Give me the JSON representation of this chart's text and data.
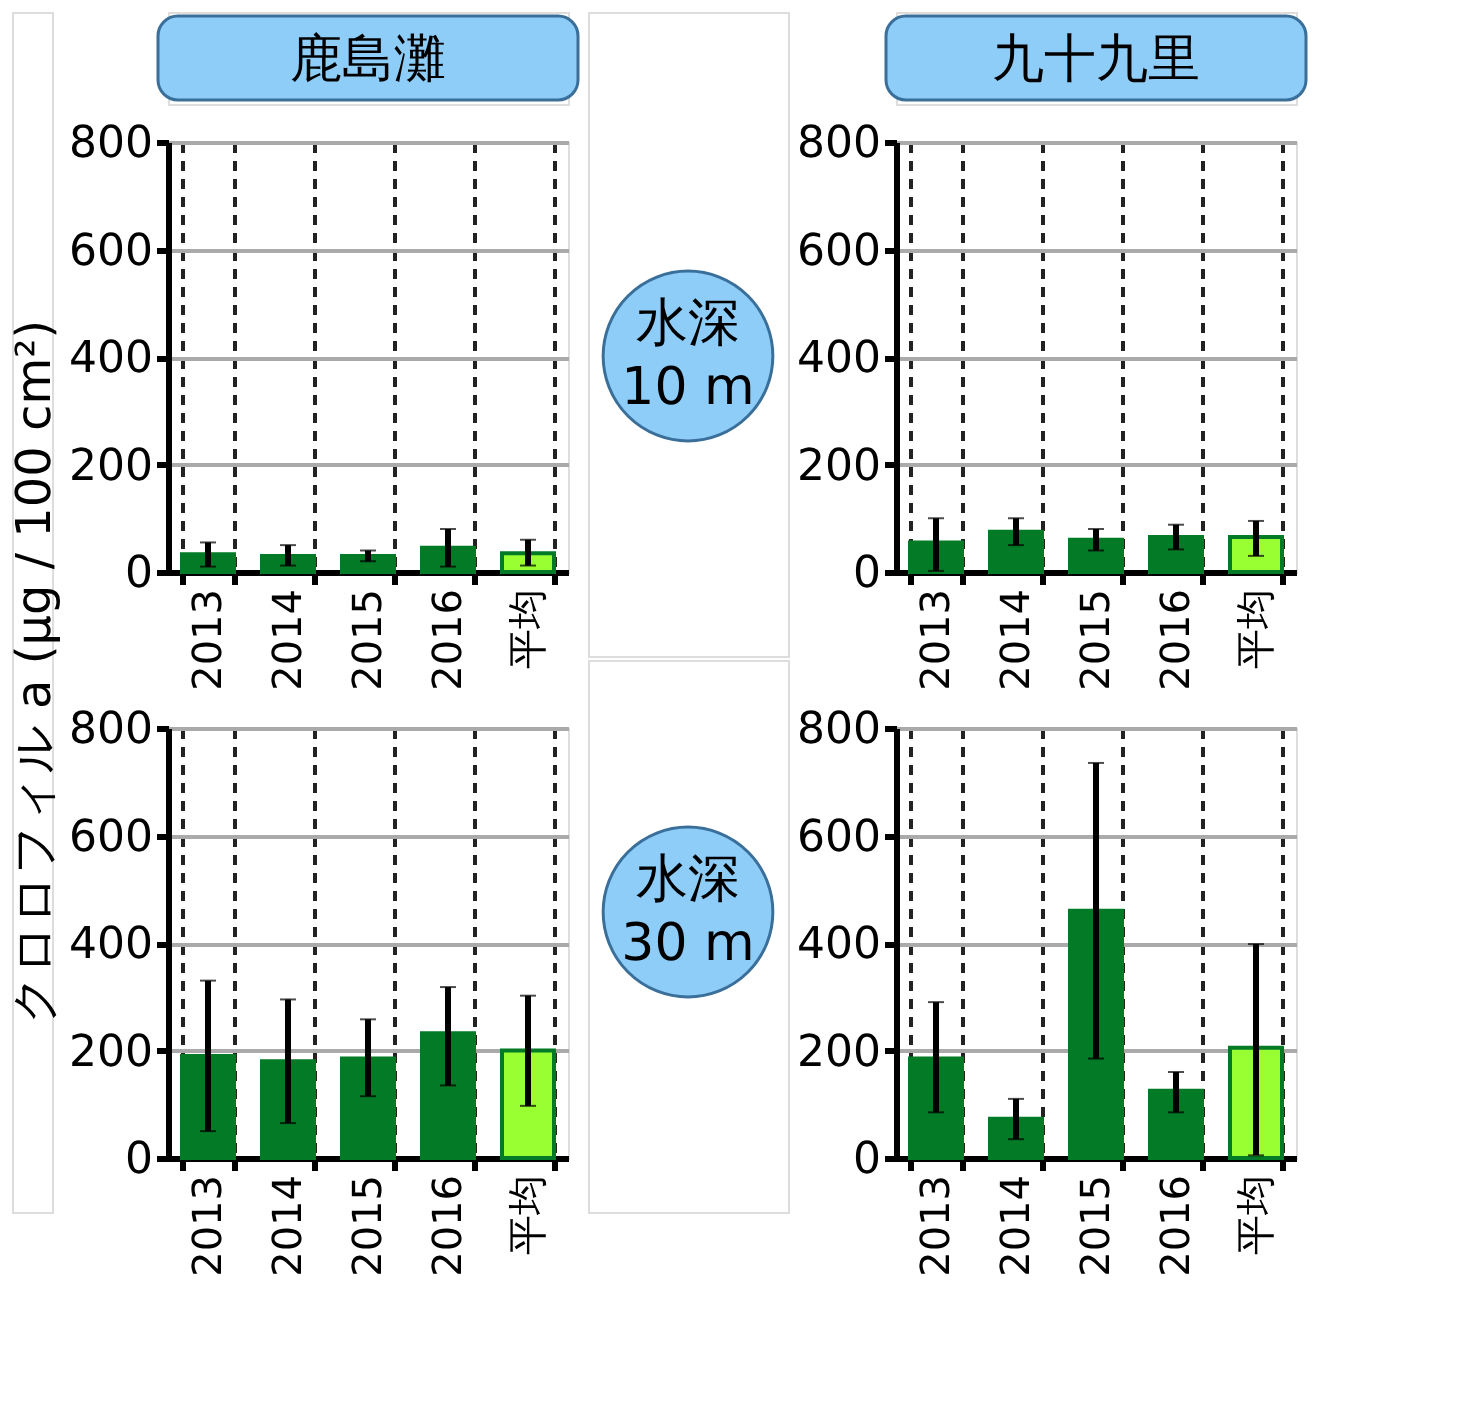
{
  "chart_data": [
    {
      "type": "bar",
      "title": "鹿島灘",
      "ylabel": "クロロフィル a (μg / 100 cm²)",
      "annotations": [
        "水深 10 m"
      ],
      "categories": [
        "2013",
        "2014",
        "2015",
        "2016",
        "平均"
      ],
      "values": [
        33,
        30,
        30,
        45,
        35
      ],
      "errors": [
        [
          10,
          55
        ],
        [
          12,
          50
        ],
        [
          20,
          40
        ],
        [
          10,
          80
        ],
        [
          12,
          60
        ]
      ],
      "colors": [
        "#037a26",
        "#037a26",
        "#037a26",
        "#037a26",
        "#99ff33"
      ],
      "ylim": [
        0,
        800
      ],
      "yticks": [
        0,
        200,
        400,
        600,
        800
      ],
      "grid": true
    },
    {
      "type": "bar",
      "title": "九十九里",
      "categories": [
        "2013",
        "2014",
        "2015",
        "2016",
        "平均"
      ],
      "values": [
        55,
        75,
        60,
        65,
        65
      ],
      "errors": [
        [
          2,
          100
        ],
        [
          50,
          100
        ],
        [
          40,
          80
        ],
        [
          42,
          88
        ],
        [
          30,
          95
        ]
      ],
      "colors": [
        "#037a26",
        "#037a26",
        "#037a26",
        "#037a26",
        "#99ff33"
      ],
      "ylim": [
        0,
        800
      ],
      "yticks": [
        0,
        200,
        400,
        600,
        800
      ],
      "grid": true
    },
    {
      "type": "bar",
      "annotations": [
        "水深 30 m"
      ],
      "categories": [
        "2013",
        "2014",
        "2015",
        "2016",
        "平均"
      ],
      "values": [
        190,
        180,
        185,
        232,
        200
      ],
      "errors": [
        [
          50,
          330
        ],
        [
          65,
          295
        ],
        [
          115,
          258
        ],
        [
          135,
          318
        ],
        [
          97,
          302
        ]
      ],
      "colors": [
        "#037a26",
        "#037a26",
        "#037a26",
        "#037a26",
        "#99ff33"
      ],
      "ylim": [
        0,
        800
      ],
      "yticks": [
        0,
        200,
        400,
        600,
        800
      ],
      "grid": true
    },
    {
      "type": "bar",
      "categories": [
        "2013",
        "2014",
        "2015",
        "2016",
        "平均"
      ],
      "values": [
        185,
        73,
        460,
        125,
        205
      ],
      "errors": [
        [
          85,
          290
        ],
        [
          35,
          110
        ],
        [
          185,
          735
        ],
        [
          85,
          160
        ],
        [
          5,
          398
        ]
      ],
      "colors": [
        "#037a26",
        "#037a26",
        "#037a26",
        "#037a26",
        "#99ff33"
      ],
      "ylim": [
        0,
        800
      ],
      "yticks": [
        0,
        200,
        400,
        600,
        800
      ],
      "grid": true
    }
  ]
}
